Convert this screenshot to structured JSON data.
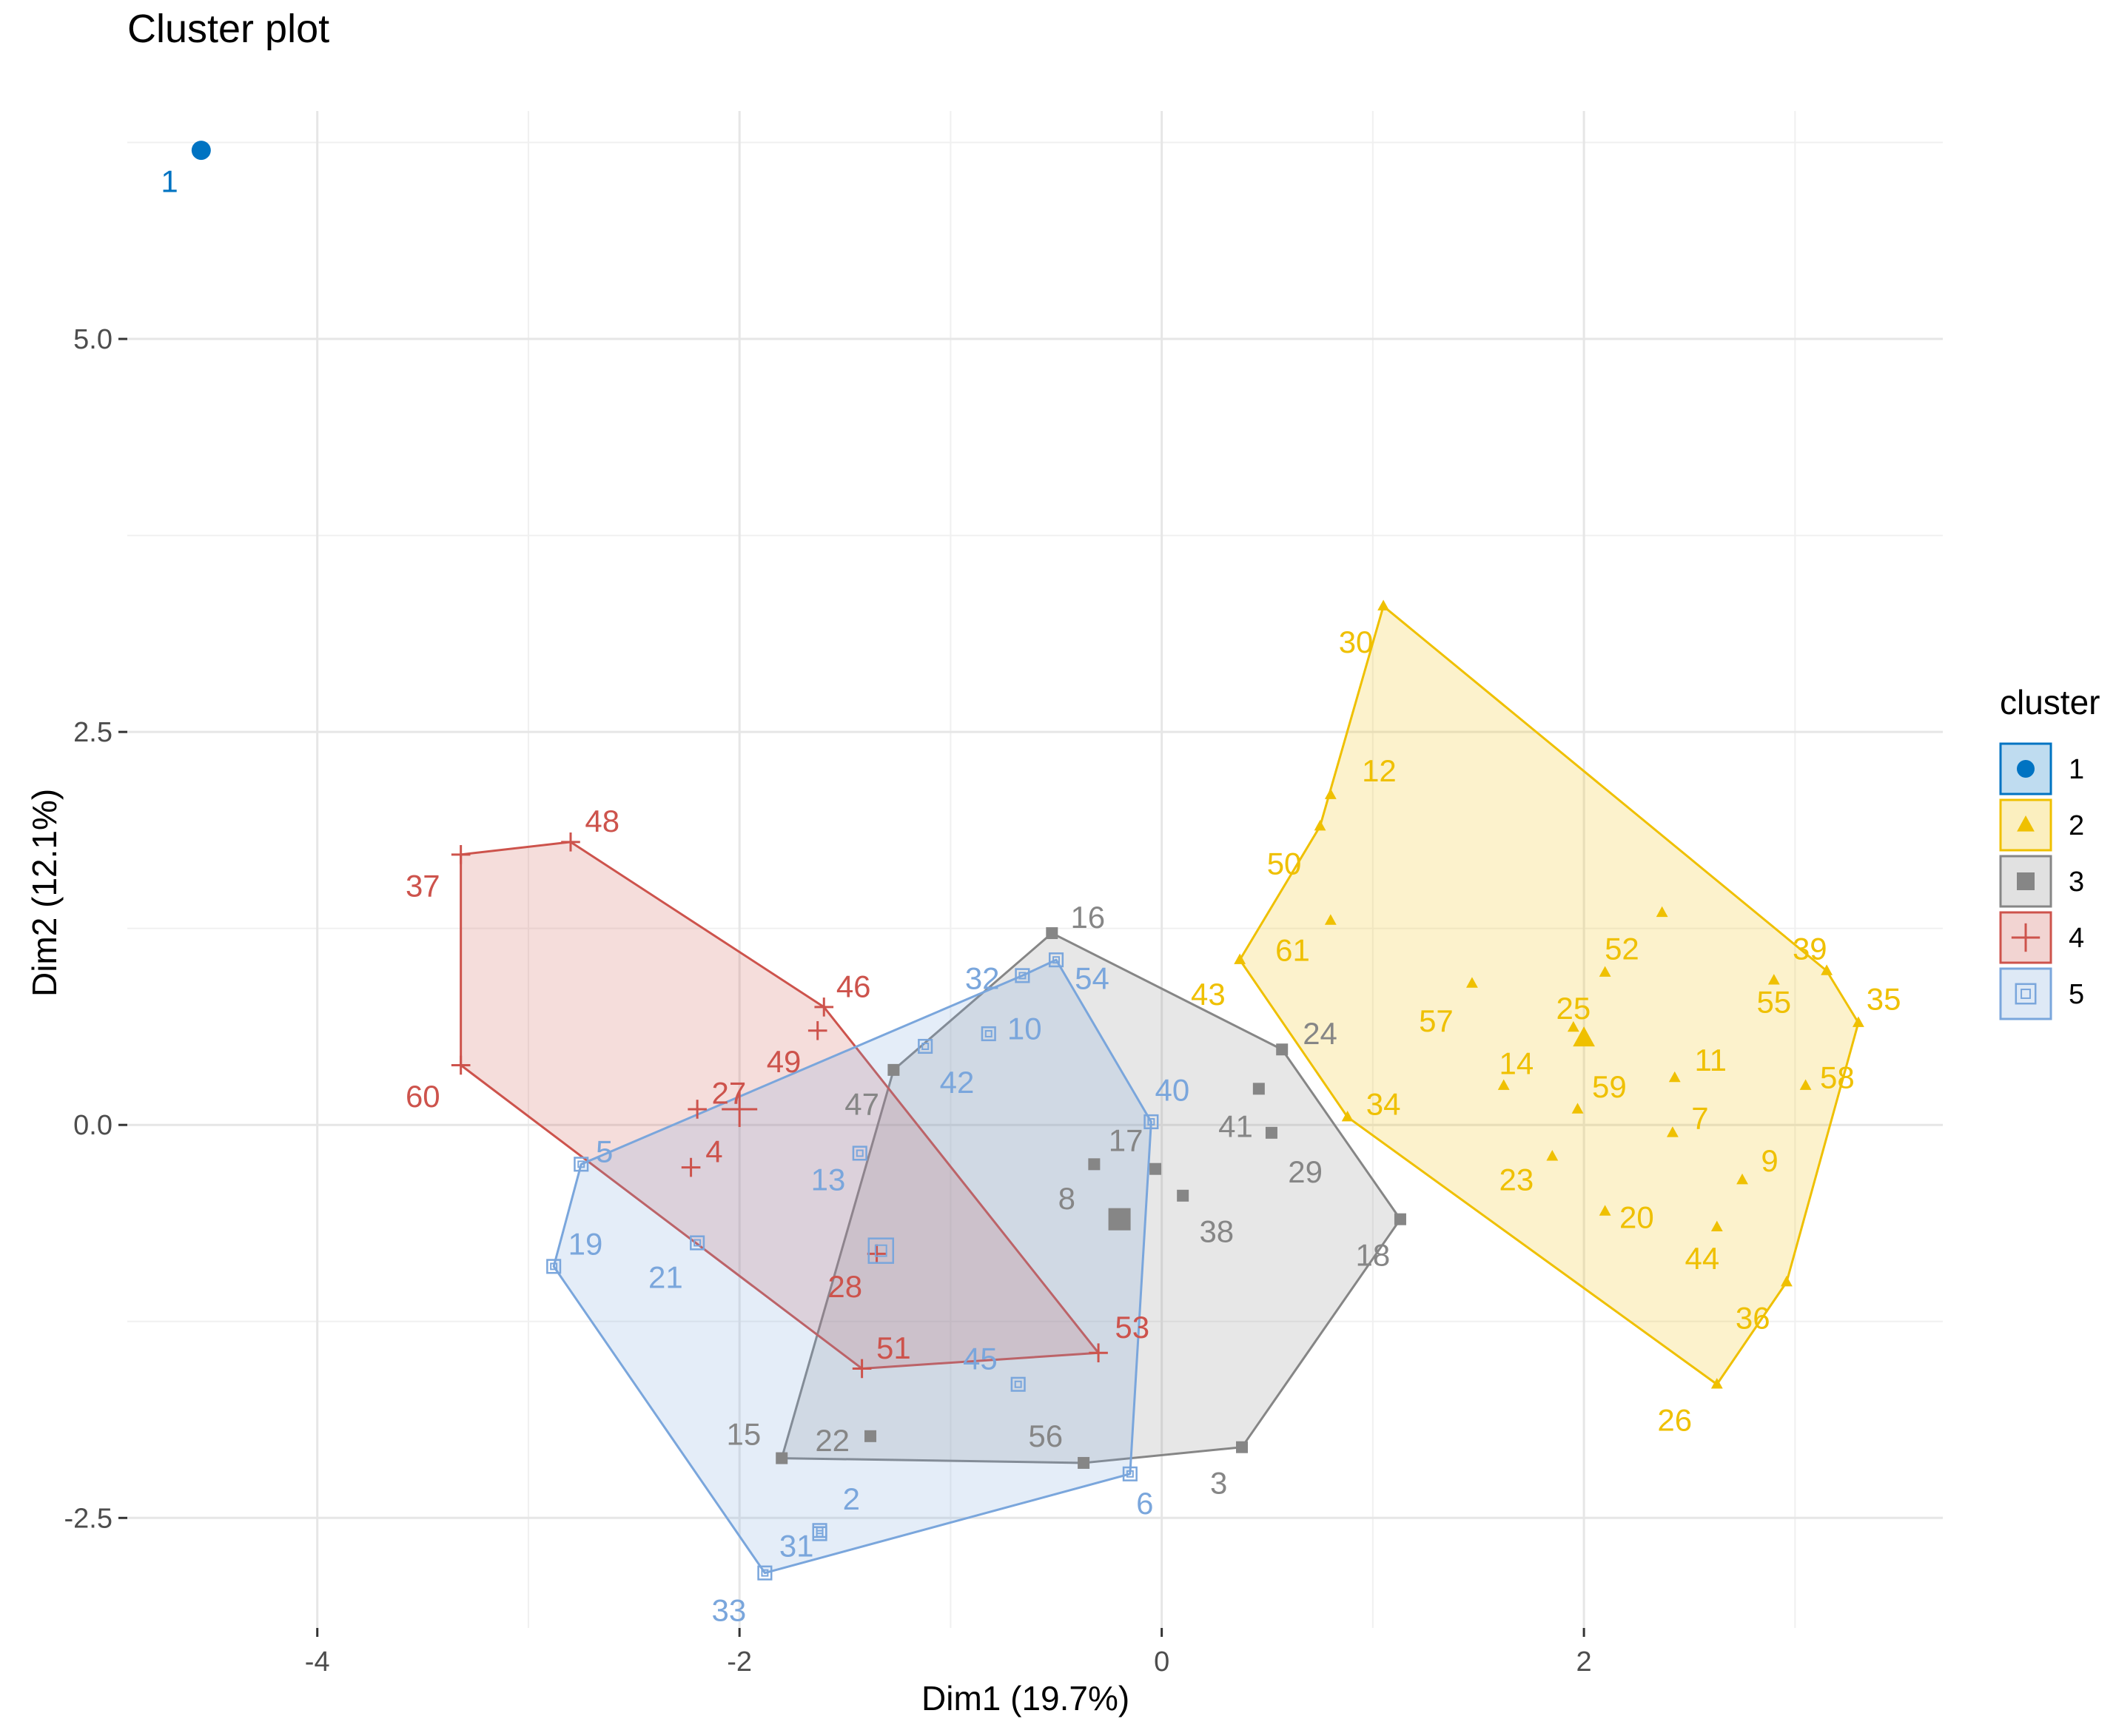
{
  "chart_data": {
    "type": "scatter",
    "title": "Cluster plot",
    "xlabel": "Dim1 (19.7%)",
    "ylabel": "Dim2 (12.1%)",
    "xlim": [
      -4.9,
      3.7
    ],
    "ylim": [
      -3.2,
      6.45
    ],
    "x_ticks": [
      -4,
      -2,
      0,
      2
    ],
    "x_tick_labels": [
      "-4",
      "-2",
      "0",
      "2"
    ],
    "y_ticks": [
      -2.5,
      0.0,
      2.5,
      5.0
    ],
    "y_tick_labels": [
      "-2.5",
      "0.0",
      "2.5",
      "5.0"
    ],
    "grid": true,
    "legend": {
      "title": "cluster",
      "placement": "right",
      "items": [
        {
          "label": "1",
          "color": "#0073C2",
          "shape": "circle"
        },
        {
          "label": "2",
          "color": "#EFC000",
          "shape": "triangle"
        },
        {
          "label": "3",
          "color": "#868686",
          "shape": "square"
        },
        {
          "label": "4",
          "color": "#CD534C",
          "shape": "plus"
        },
        {
          "label": "5",
          "color": "#7AA6DC",
          "shape": "square-x"
        }
      ]
    },
    "series": [
      {
        "name": "1",
        "color": "#0073C2",
        "shape": "circle",
        "points": [
          {
            "label": "1",
            "x": -4.55,
            "y": 6.2
          }
        ],
        "centroid": {
          "x": -4.55,
          "y": 6.2
        },
        "hull": []
      },
      {
        "name": "2",
        "color": "#EFC000",
        "shape": "triangle",
        "points": [
          {
            "label": "30",
            "x": 1.05,
            "y": 3.3
          },
          {
            "label": "12",
            "x": 0.8,
            "y": 2.1
          },
          {
            "label": "50",
            "x": 0.75,
            "y": 1.9
          },
          {
            "label": "61",
            "x": 0.8,
            "y": 1.3
          },
          {
            "label": "43",
            "x": 0.37,
            "y": 1.05
          },
          {
            "label": "34",
            "x": 0.88,
            "y": 0.05
          },
          {
            "label": "57",
            "x": 1.47,
            "y": 0.9
          },
          {
            "label": "52",
            "x": 2.1,
            "y": 0.97
          },
          {
            "label": "14",
            "x": 1.62,
            "y": 0.25
          },
          {
            "label": "25",
            "x": 1.95,
            "y": 0.62
          },
          {
            "label": "59",
            "x": 1.97,
            "y": 0.1
          },
          {
            "label": "23",
            "x": 1.85,
            "y": -0.2
          },
          {
            "label": "20",
            "x": 2.1,
            "y": -0.55
          },
          {
            "label": "11",
            "x": 2.43,
            "y": 0.3
          },
          {
            "label": "7",
            "x": 2.42,
            "y": -0.05
          },
          {
            "label": "55",
            "x": 2.9,
            "y": 0.92
          },
          {
            "label": "39",
            "x": 3.15,
            "y": 0.98
          },
          {
            "label": "35",
            "x": 3.3,
            "y": 0.65
          },
          {
            "label": "58",
            "x": 3.05,
            "y": 0.25
          },
          {
            "label": "9",
            "x": 2.75,
            "y": -0.35
          },
          {
            "label": "44",
            "x": 2.63,
            "y": -0.65
          },
          {
            "label": "36",
            "x": 2.96,
            "y": -1.0
          },
          {
            "label": "26",
            "x": 2.63,
            "y": -1.65
          },
          {
            "label": "",
            "x": 2.37,
            "y": 1.35
          }
        ],
        "centroid": {
          "x": 2.0,
          "y": 0.55
        },
        "hull": [
          [
            "30",
            1.05,
            3.3
          ],
          [
            "39",
            3.15,
            0.98
          ],
          [
            "35",
            3.3,
            0.65
          ],
          [
            "36",
            2.96,
            -1.0
          ],
          [
            "26",
            2.63,
            -1.65
          ],
          [
            "34",
            0.88,
            0.05
          ],
          [
            "43",
            0.37,
            1.05
          ],
          [
            "50",
            0.75,
            1.9
          ]
        ]
      },
      {
        "name": "3",
        "color": "#868686",
        "shape": "square",
        "points": [
          {
            "label": "16",
            "x": -0.52,
            "y": 1.22
          },
          {
            "label": "24",
            "x": 0.57,
            "y": 0.48
          },
          {
            "label": "41",
            "x": 0.46,
            "y": 0.23
          },
          {
            "label": "29",
            "x": 0.52,
            "y": -0.05
          },
          {
            "label": "17",
            "x": -0.03,
            "y": -0.28
          },
          {
            "label": "8",
            "x": -0.32,
            "y": -0.25
          },
          {
            "label": "38",
            "x": 0.1,
            "y": -0.45
          },
          {
            "label": "18",
            "x": 1.13,
            "y": -0.6
          },
          {
            "label": "47",
            "x": -1.27,
            "y": 0.35
          },
          {
            "label": "3",
            "x": 0.38,
            "y": -2.05
          },
          {
            "label": "56",
            "x": -0.37,
            "y": -2.15
          },
          {
            "label": "22",
            "x": -1.38,
            "y": -1.98
          },
          {
            "label": "15",
            "x": -1.8,
            "y": -2.12
          }
        ],
        "centroid": {
          "x": -0.2,
          "y": -0.6
        },
        "hull": [
          [
            "16",
            -0.52,
            1.22
          ],
          [
            "24",
            0.57,
            0.48
          ],
          [
            "18",
            1.13,
            -0.6
          ],
          [
            "3",
            0.38,
            -2.05
          ],
          [
            "56",
            -0.37,
            -2.15
          ],
          [
            "15",
            -1.8,
            -2.12
          ],
          [
            "47",
            -1.27,
            0.35
          ]
        ]
      },
      {
        "name": "4",
        "color": "#CD534C",
        "shape": "plus",
        "points": [
          {
            "label": "48",
            "x": -2.8,
            "y": 1.8
          },
          {
            "label": "37",
            "x": -3.32,
            "y": 1.72
          },
          {
            "label": "60",
            "x": -3.32,
            "y": 0.38
          },
          {
            "label": "46",
            "x": -1.6,
            "y": 0.75
          },
          {
            "label": "49",
            "x": -1.63,
            "y": 0.6
          },
          {
            "label": "27",
            "x": -2.2,
            "y": 0.1
          },
          {
            "label": "4",
            "x": -2.23,
            "y": -0.27
          },
          {
            "label": "28",
            "x": -1.35,
            "y": -0.82
          },
          {
            "label": "51",
            "x": -1.42,
            "y": -1.55
          },
          {
            "label": "53",
            "x": -0.3,
            "y": -1.45
          }
        ],
        "centroid": {
          "x": -2.0,
          "y": 0.1
        },
        "hull": [
          [
            "48",
            -2.8,
            1.8
          ],
          [
            "46",
            -1.6,
            0.75
          ],
          [
            "53",
            -0.3,
            -1.45
          ],
          [
            "51",
            -1.42,
            -1.55
          ],
          [
            "60",
            -3.32,
            0.38
          ],
          [
            "37",
            -3.32,
            1.72
          ]
        ]
      },
      {
        "name": "5",
        "color": "#7AA6DC",
        "shape": "square-x",
        "points": [
          {
            "label": "32",
            "x": -0.66,
            "y": 0.95
          },
          {
            "label": "54",
            "x": -0.5,
            "y": 1.05
          },
          {
            "label": "10",
            "x": -0.82,
            "y": 0.58
          },
          {
            "label": "42",
            "x": -1.12,
            "y": 0.5
          },
          {
            "label": "40",
            "x": -0.05,
            "y": 0.02
          },
          {
            "label": "13",
            "x": -1.43,
            "y": -0.18
          },
          {
            "label": "5",
            "x": -2.75,
            "y": -0.25
          },
          {
            "label": "19",
            "x": -2.88,
            "y": -0.9
          },
          {
            "label": "21",
            "x": -2.2,
            "y": -0.75
          },
          {
            "label": "45",
            "x": -0.68,
            "y": -1.65
          },
          {
            "label": "6",
            "x": -0.15,
            "y": -2.22
          },
          {
            "label": "2",
            "x": -1.62,
            "y": -2.58
          },
          {
            "label": "31",
            "x": -1.62,
            "y": -2.6
          },
          {
            "label": "33",
            "x": -1.88,
            "y": -2.85
          }
        ],
        "centroid": {
          "x": -1.33,
          "y": -0.8
        },
        "hull": [
          [
            "54",
            -0.5,
            1.05
          ],
          [
            "40",
            -0.05,
            0.02
          ],
          [
            "6",
            -0.15,
            -2.22
          ],
          [
            "33",
            -1.88,
            -2.85
          ],
          [
            "19",
            -2.88,
            -0.9
          ],
          [
            "5",
            -2.75,
            -0.25
          ],
          [
            "32",
            -0.66,
            0.95
          ]
        ]
      }
    ],
    "point_labels_in_plot": [
      {
        "text": "1",
        "series": "1",
        "x": -4.7,
        "y": 6.0
      },
      {
        "text": "30",
        "series": "2",
        "x": 0.92,
        "y": 3.07
      },
      {
        "text": "12",
        "series": "2",
        "x": 1.03,
        "y": 2.25
      },
      {
        "text": "50",
        "series": "2",
        "x": 0.58,
        "y": 1.66
      },
      {
        "text": "61",
        "series": "2",
        "x": 0.62,
        "y": 1.11
      },
      {
        "text": "43",
        "series": "2",
        "x": 0.22,
        "y": 0.83
      },
      {
        "text": "34",
        "series": "2",
        "x": 1.05,
        "y": 0.13
      },
      {
        "text": "57",
        "series": "2",
        "x": 1.3,
        "y": 0.66
      },
      {
        "text": "52",
        "series": "2",
        "x": 2.18,
        "y": 1.12
      },
      {
        "text": "25",
        "series": "2",
        "x": 1.95,
        "y": 0.74
      },
      {
        "text": "14",
        "series": "2",
        "x": 1.68,
        "y": 0.39
      },
      {
        "text": "59",
        "series": "2",
        "x": 2.12,
        "y": 0.24
      },
      {
        "text": "11",
        "series": "2",
        "x": 2.6,
        "y": 0.41
      },
      {
        "text": "7",
        "series": "2",
        "x": 2.55,
        "y": 0.04
      },
      {
        "text": "23",
        "series": "2",
        "x": 1.68,
        "y": -0.35
      },
      {
        "text": "20",
        "series": "2",
        "x": 2.25,
        "y": -0.59
      },
      {
        "text": "9",
        "series": "2",
        "x": 2.88,
        "y": -0.23
      },
      {
        "text": "44",
        "series": "2",
        "x": 2.56,
        "y": -0.85
      },
      {
        "text": "36",
        "series": "2",
        "x": 2.8,
        "y": -1.23
      },
      {
        "text": "26",
        "series": "2",
        "x": 2.43,
        "y": -1.88
      },
      {
        "text": "39",
        "series": "2",
        "x": 3.07,
        "y": 1.12
      },
      {
        "text": "55",
        "series": "2",
        "x": 2.9,
        "y": 0.78
      },
      {
        "text": "35",
        "series": "2",
        "x": 3.42,
        "y": 0.8
      },
      {
        "text": "58",
        "series": "2",
        "x": 3.2,
        "y": 0.3
      },
      {
        "text": "16",
        "series": "3",
        "x": -0.35,
        "y": 1.32
      },
      {
        "text": "24",
        "series": "3",
        "x": 0.75,
        "y": 0.58
      },
      {
        "text": "41",
        "series": "3",
        "x": 0.35,
        "y": -0.01
      },
      {
        "text": "29",
        "series": "3",
        "x": 0.68,
        "y": -0.3
      },
      {
        "text": "17",
        "series": "3",
        "x": -0.17,
        "y": -0.1
      },
      {
        "text": "8",
        "series": "3",
        "x": -0.45,
        "y": -0.47
      },
      {
        "text": "38",
        "series": "3",
        "x": 0.26,
        "y": -0.68
      },
      {
        "text": "18",
        "series": "3",
        "x": 1.0,
        "y": -0.83
      },
      {
        "text": "47",
        "series": "3",
        "x": -1.42,
        "y": 0.13
      },
      {
        "text": "3",
        "series": "3",
        "x": 0.27,
        "y": -2.28
      },
      {
        "text": "56",
        "series": "3",
        "x": -0.55,
        "y": -1.98
      },
      {
        "text": "22",
        "series": "3",
        "x": -1.56,
        "y": -2.01
      },
      {
        "text": "15",
        "series": "3",
        "x": -1.98,
        "y": -1.97
      },
      {
        "text": "48",
        "series": "4",
        "x": -2.65,
        "y": 1.93
      },
      {
        "text": "37",
        "series": "4",
        "x": -3.5,
        "y": 1.52
      },
      {
        "text": "60",
        "series": "4",
        "x": -3.5,
        "y": 0.18
      },
      {
        "text": "46",
        "series": "4",
        "x": -1.46,
        "y": 0.88
      },
      {
        "text": "49",
        "series": "4",
        "x": -1.79,
        "y": 0.4
      },
      {
        "text": "27",
        "series": "4",
        "x": -2.05,
        "y": 0.2
      },
      {
        "text": "4",
        "series": "4",
        "x": -2.12,
        "y": -0.17
      },
      {
        "text": "28",
        "series": "4",
        "x": -1.5,
        "y": -1.03
      },
      {
        "text": "51",
        "series": "4",
        "x": -1.27,
        "y": -1.42
      },
      {
        "text": "53",
        "series": "4",
        "x": -0.14,
        "y": -1.29
      },
      {
        "text": "32",
        "series": "5",
        "x": -0.85,
        "y": 0.93
      },
      {
        "text": "54",
        "series": "5",
        "x": -0.33,
        "y": 0.93
      },
      {
        "text": "10",
        "series": "5",
        "x": -0.65,
        "y": 0.61
      },
      {
        "text": "42",
        "series": "5",
        "x": -0.97,
        "y": 0.27
      },
      {
        "text": "40",
        "series": "5",
        "x": 0.05,
        "y": 0.22
      },
      {
        "text": "13",
        "series": "5",
        "x": -1.58,
        "y": -0.35
      },
      {
        "text": "5",
        "series": "5",
        "x": -2.64,
        "y": -0.17
      },
      {
        "text": "19",
        "series": "5",
        "x": -2.73,
        "y": -0.76
      },
      {
        "text": "21",
        "series": "5",
        "x": -2.35,
        "y": -0.97
      },
      {
        "text": "45",
        "series": "5",
        "x": -0.86,
        "y": -1.49
      },
      {
        "text": "6",
        "series": "5",
        "x": -0.08,
        "y": -2.41
      },
      {
        "text": "2",
        "series": "5",
        "x": -1.47,
        "y": -2.38
      },
      {
        "text": "31",
        "series": "5",
        "x": -1.73,
        "y": -2.68
      },
      {
        "text": "33",
        "series": "5",
        "x": -2.05,
        "y": -3.09
      }
    ]
  }
}
